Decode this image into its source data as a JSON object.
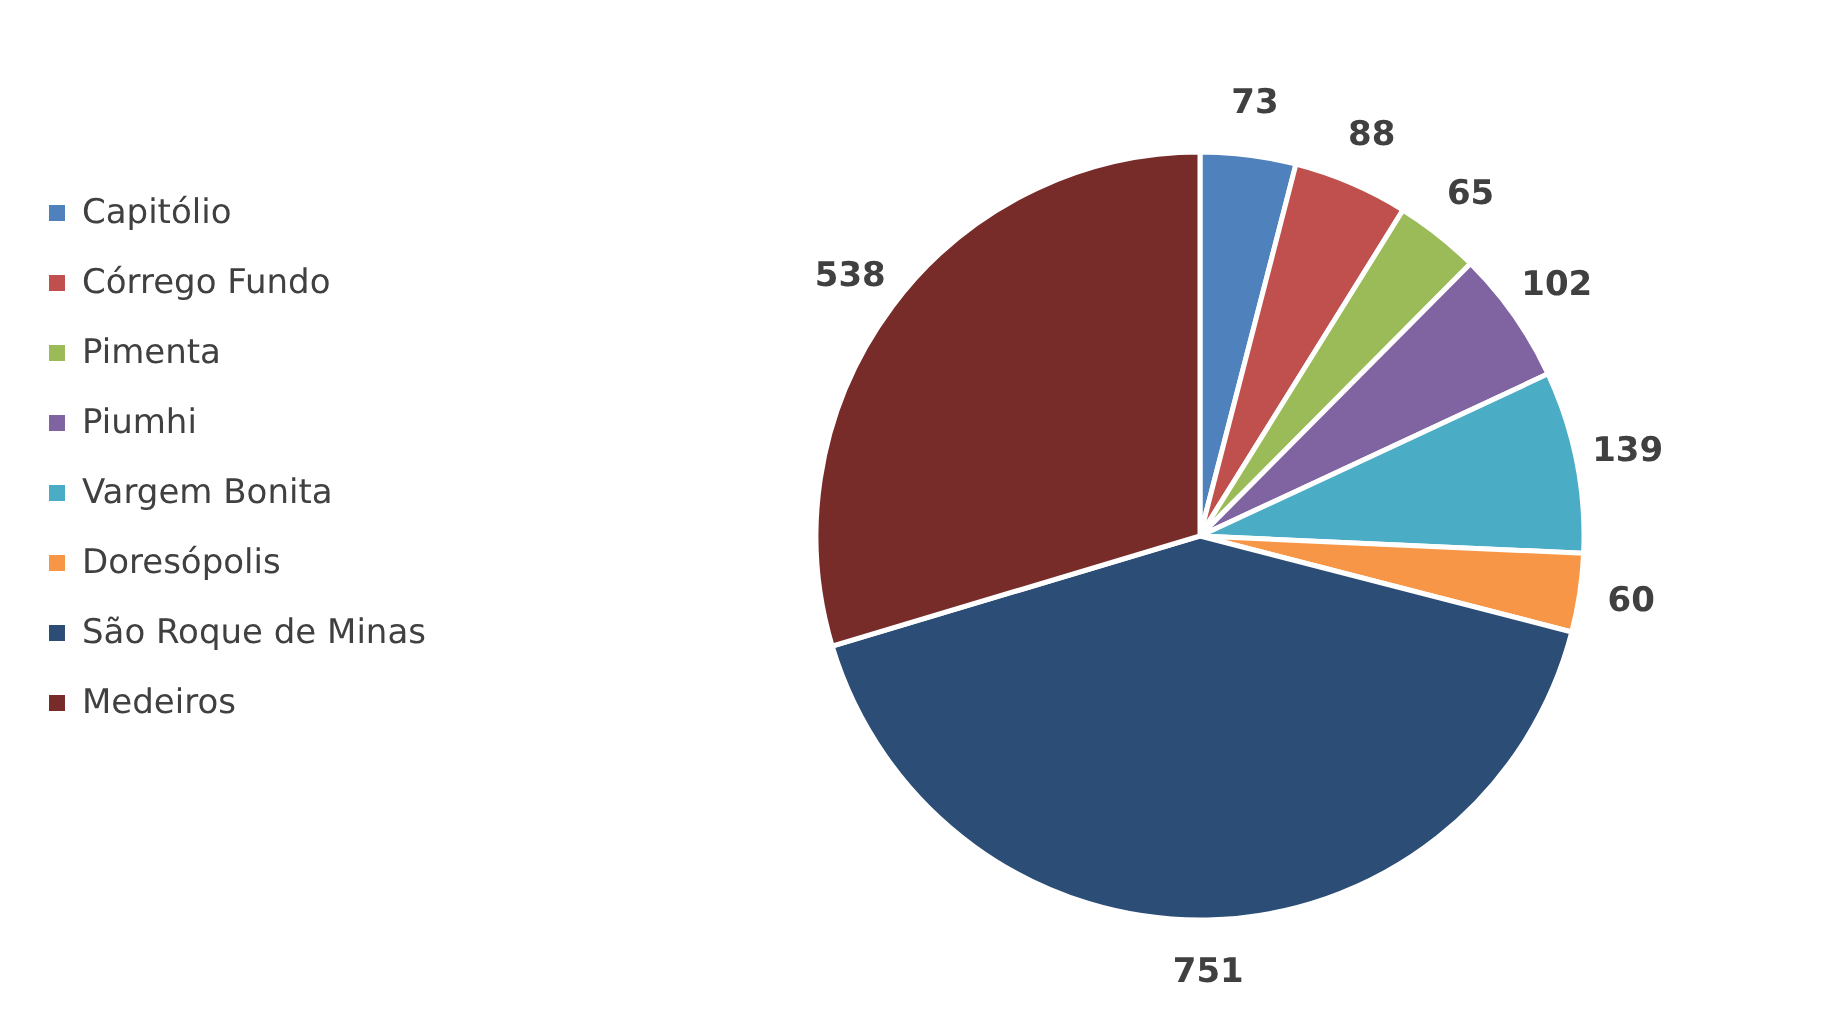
{
  "chart_data": {
    "type": "pie",
    "categories": [
      "Capitólio",
      "Córrego Fundo",
      "Pimenta",
      "Piumhi",
      "Vargem Bonita",
      "Doresópolis",
      "São Roque de Minas",
      "Medeiros"
    ],
    "values": [
      73,
      88,
      65,
      102,
      139,
      60,
      751,
      538
    ],
    "colors": [
      "#4f81bd",
      "#c0504d",
      "#9bbb59",
      "#8064a2",
      "#4bacc6",
      "#f79646",
      "#2c4d75",
      "#772c2a"
    ],
    "data_labels": true,
    "legend": "left"
  }
}
